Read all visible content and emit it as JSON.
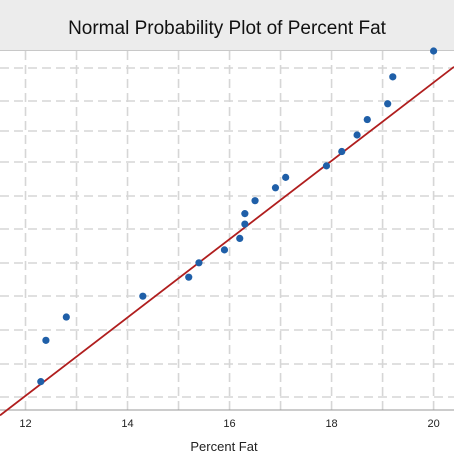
{
  "chart_data": {
    "type": "scatter",
    "title": "Normal Probability Plot of Percent Fat",
    "xlabel": "Percent Fat",
    "ylabel": "",
    "xlim": [
      11.5,
      20.4
    ],
    "ylim": [
      0.0,
      1.0
    ],
    "xticks": [
      "12",
      "14",
      "16",
      "18",
      "20"
    ],
    "grid": true,
    "points": [
      {
        "x": 12.3,
        "y": 0.079
      },
      {
        "x": 12.4,
        "y": 0.194
      },
      {
        "x": 12.8,
        "y": 0.259
      },
      {
        "x": 14.3,
        "y": 0.317
      },
      {
        "x": 15.2,
        "y": 0.37
      },
      {
        "x": 15.4,
        "y": 0.41
      },
      {
        "x": 15.9,
        "y": 0.446
      },
      {
        "x": 16.2,
        "y": 0.478
      },
      {
        "x": 16.3,
        "y": 0.518
      },
      {
        "x": 16.3,
        "y": 0.547
      },
      {
        "x": 16.5,
        "y": 0.583
      },
      {
        "x": 16.9,
        "y": 0.619
      },
      {
        "x": 17.1,
        "y": 0.648
      },
      {
        "x": 17.9,
        "y": 0.68
      },
      {
        "x": 18.2,
        "y": 0.72
      },
      {
        "x": 18.5,
        "y": 0.766
      },
      {
        "x": 18.7,
        "y": 0.809
      },
      {
        "x": 19.1,
        "y": 0.853
      },
      {
        "x": 19.2,
        "y": 0.928
      },
      {
        "x": 20.0,
        "y": 1.0
      }
    ],
    "fit_line": [
      {
        "x": 11.5,
        "y": -0.015
      },
      {
        "x": 20.4,
        "y": 0.956
      }
    ],
    "colors": {
      "points": "#1f5fa8",
      "fit_line": "#b01e1e",
      "grid": "#d6d6d6",
      "title_bar": "#ececec"
    }
  }
}
